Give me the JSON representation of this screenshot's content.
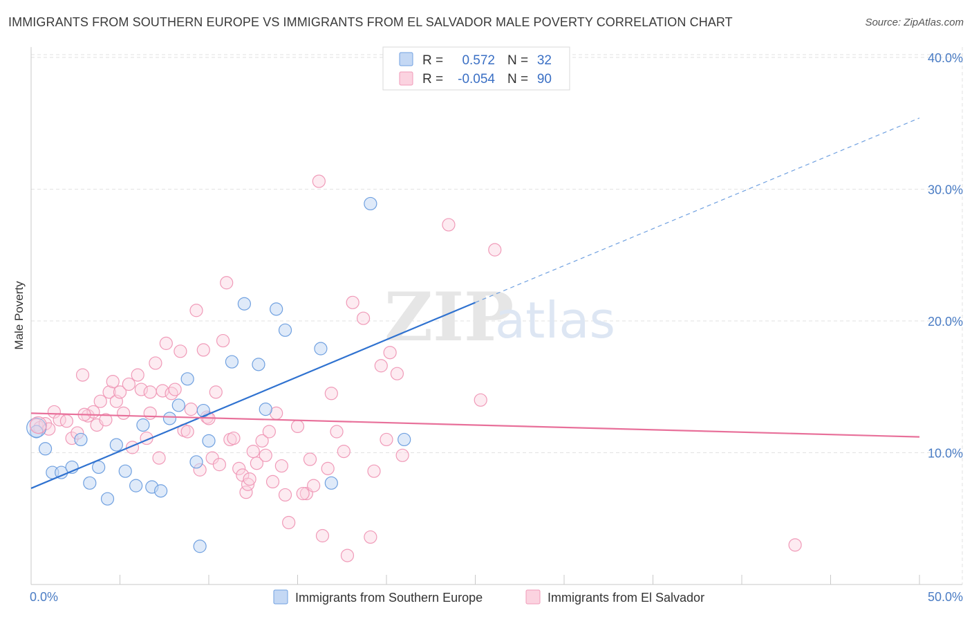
{
  "title": "IMMIGRANTS FROM SOUTHERN EUROPE VS IMMIGRANTS FROM EL SALVADOR MALE POVERTY CORRELATION CHART",
  "source": "Source: ZipAtlas.com",
  "watermark": {
    "zip": "ZIP",
    "atlas": "atlas"
  },
  "legend": {
    "rows": [
      {
        "r_label": "R =",
        "r_value": "0.572",
        "n_label": "N =",
        "n_value": "32",
        "color": "#6fa0e0"
      },
      {
        "r_label": "R =",
        "r_value": "-0.054",
        "n_label": "N =",
        "n_value": "90",
        "color": "#f09ab8"
      }
    ]
  },
  "bottom_legend": [
    {
      "label": "Immigrants from Southern Europe",
      "color": "#6fa0e0"
    },
    {
      "label": "Immigrants from El Salvador",
      "color": "#f09ab8"
    }
  ],
  "chart_data": {
    "type": "scatter",
    "title": "IMMIGRANTS FROM SOUTHERN EUROPE VS IMMIGRANTS FROM EL SALVADOR MALE POVERTY CORRELATION CHART",
    "xlabel": "",
    "ylabel": "Male Poverty",
    "xlim": [
      0,
      50
    ],
    "ylim": [
      0,
      41.5
    ],
    "x_tick_labels": [
      "0.0%",
      "50.0%"
    ],
    "y_ticks": [
      10,
      20,
      30,
      40
    ],
    "y_tick_labels": [
      "10.0%",
      "20.0%",
      "30.0%",
      "40.0%"
    ],
    "grid": true,
    "legend_position": "top-center",
    "series": [
      {
        "name": "Immigrants from Southern Europe",
        "color": "#6fa0e0",
        "R": 0.572,
        "N": 32,
        "trend": {
          "x0": 0,
          "y0": 7.3,
          "x1": 25,
          "y1": 21.4,
          "extend_to_x": 50,
          "extend_to_y": 35.4
        },
        "points": [
          [
            0.3,
            11.6
          ],
          [
            0.8,
            10.3
          ],
          [
            1.2,
            8.5
          ],
          [
            1.7,
            8.5
          ],
          [
            2.3,
            8.9
          ],
          [
            2.8,
            11.0
          ],
          [
            3.3,
            7.7
          ],
          [
            3.8,
            8.9
          ],
          [
            4.3,
            6.5
          ],
          [
            4.8,
            10.6
          ],
          [
            5.3,
            8.6
          ],
          [
            5.9,
            7.5
          ],
          [
            6.3,
            12.1
          ],
          [
            6.8,
            7.4
          ],
          [
            7.3,
            7.1
          ],
          [
            7.8,
            12.6
          ],
          [
            8.3,
            13.6
          ],
          [
            8.8,
            15.6
          ],
          [
            9.3,
            9.3
          ],
          [
            9.5,
            2.9
          ],
          [
            9.7,
            13.2
          ],
          [
            10.0,
            10.9
          ],
          [
            11.3,
            16.9
          ],
          [
            12.0,
            21.3
          ],
          [
            12.8,
            16.7
          ],
          [
            13.2,
            13.3
          ],
          [
            13.8,
            20.9
          ],
          [
            14.3,
            19.3
          ],
          [
            16.3,
            17.9
          ],
          [
            16.9,
            7.7
          ],
          [
            19.1,
            28.9
          ],
          [
            21.0,
            11.0
          ]
        ]
      },
      {
        "name": "Immigrants from El Salvador",
        "color": "#f09ab8",
        "R": -0.054,
        "N": 90,
        "trend": {
          "x0": 0,
          "y0": 13.0,
          "x1": 50,
          "y1": 11.2
        },
        "points": [
          [
            0.3,
            12.1
          ],
          [
            0.5,
            11.9
          ],
          [
            0.8,
            12.2
          ],
          [
            1.0,
            11.8
          ],
          [
            1.3,
            13.1
          ],
          [
            1.6,
            12.5
          ],
          [
            2.0,
            12.4
          ],
          [
            2.3,
            11.1
          ],
          [
            2.6,
            11.5
          ],
          [
            2.9,
            15.9
          ],
          [
            3.2,
            12.8
          ],
          [
            3.5,
            13.1
          ],
          [
            3.7,
            12.1
          ],
          [
            3.9,
            13.9
          ],
          [
            4.2,
            12.5
          ],
          [
            4.4,
            14.6
          ],
          [
            4.6,
            15.4
          ],
          [
            4.8,
            13.9
          ],
          [
            5.0,
            14.6
          ],
          [
            5.2,
            13.0
          ],
          [
            5.5,
            15.2
          ],
          [
            5.7,
            10.4
          ],
          [
            6.0,
            15.9
          ],
          [
            6.2,
            14.8
          ],
          [
            6.5,
            11.1
          ],
          [
            6.7,
            13.0
          ],
          [
            7.0,
            16.8
          ],
          [
            7.2,
            9.6
          ],
          [
            7.4,
            14.7
          ],
          [
            7.6,
            18.3
          ],
          [
            7.9,
            14.5
          ],
          [
            8.1,
            14.8
          ],
          [
            8.4,
            17.7
          ],
          [
            8.6,
            11.7
          ],
          [
            8.8,
            11.6
          ],
          [
            9.0,
            13.3
          ],
          [
            9.3,
            20.8
          ],
          [
            9.5,
            8.7
          ],
          [
            9.7,
            17.8
          ],
          [
            9.9,
            12.7
          ],
          [
            10.2,
            9.6
          ],
          [
            10.4,
            14.6
          ],
          [
            10.6,
            9.1
          ],
          [
            10.8,
            18.5
          ],
          [
            11.0,
            22.9
          ],
          [
            11.2,
            11.0
          ],
          [
            11.4,
            11.1
          ],
          [
            11.7,
            8.8
          ],
          [
            11.9,
            8.3
          ],
          [
            12.1,
            7.0
          ],
          [
            12.2,
            7.6
          ],
          [
            12.5,
            10.1
          ],
          [
            12.7,
            9.2
          ],
          [
            13.0,
            10.9
          ],
          [
            13.2,
            9.8
          ],
          [
            13.4,
            11.6
          ],
          [
            13.6,
            7.8
          ],
          [
            13.8,
            13.0
          ],
          [
            14.1,
            9.0
          ],
          [
            14.3,
            6.8
          ],
          [
            14.5,
            4.7
          ],
          [
            15.0,
            12.0
          ],
          [
            15.5,
            6.9
          ],
          [
            15.7,
            9.5
          ],
          [
            15.9,
            7.5
          ],
          [
            16.2,
            30.6
          ],
          [
            16.4,
            3.7
          ],
          [
            16.7,
            8.8
          ],
          [
            16.9,
            14.5
          ],
          [
            17.2,
            11.6
          ],
          [
            17.6,
            10.1
          ],
          [
            17.8,
            2.2
          ],
          [
            18.1,
            21.4
          ],
          [
            18.7,
            20.2
          ],
          [
            19.1,
            3.6
          ],
          [
            19.3,
            8.6
          ],
          [
            19.7,
            16.6
          ],
          [
            20.0,
            11.0
          ],
          [
            20.2,
            17.6
          ],
          [
            20.6,
            16.0
          ],
          [
            20.9,
            9.8
          ],
          [
            23.5,
            27.3
          ],
          [
            25.3,
            14.0
          ],
          [
            26.1,
            25.4
          ],
          [
            43.0,
            3.0
          ],
          [
            15.3,
            6.9
          ],
          [
            12.3,
            8.0
          ],
          [
            10.0,
            12.6
          ],
          [
            6.7,
            14.6
          ],
          [
            3.0,
            12.9
          ]
        ]
      }
    ]
  }
}
